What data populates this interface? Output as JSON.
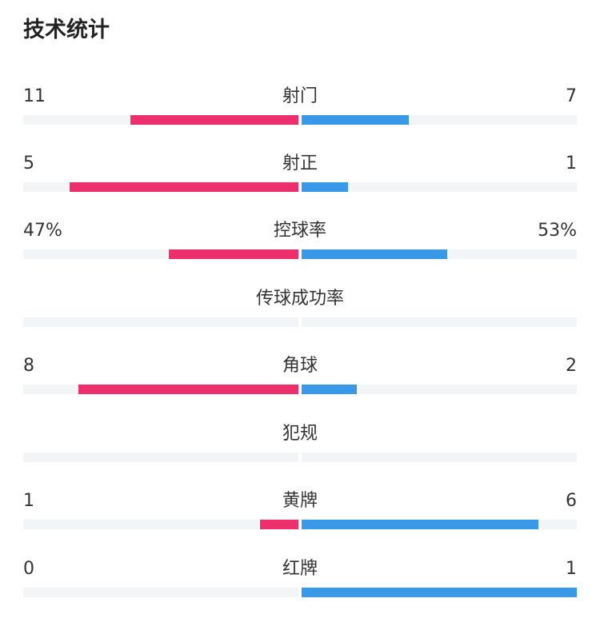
{
  "header": {
    "title": "技术统计"
  },
  "colors": {
    "home": "#ee2f6e",
    "away": "#3a98e8",
    "track": "#f3f4f6"
  },
  "stats": [
    {
      "label": "射门",
      "home": "11",
      "away": "7",
      "home_fraction": 0.61,
      "away_fraction": 0.39
    },
    {
      "label": "射正",
      "home": "5",
      "away": "1",
      "home_fraction": 0.83,
      "away_fraction": 0.17
    },
    {
      "label": "控球率",
      "home": "47%",
      "away": "53%",
      "home_fraction": 0.47,
      "away_fraction": 0.53
    },
    {
      "label": "传球成功率",
      "home": "",
      "away": "",
      "home_fraction": 0,
      "away_fraction": 0
    },
    {
      "label": "角球",
      "home": "8",
      "away": "2",
      "home_fraction": 0.8,
      "away_fraction": 0.2
    },
    {
      "label": "犯规",
      "home": "",
      "away": "",
      "home_fraction": 0,
      "away_fraction": 0
    },
    {
      "label": "黄牌",
      "home": "1",
      "away": "6",
      "home_fraction": 0.14,
      "away_fraction": 0.86
    },
    {
      "label": "红牌",
      "home": "0",
      "away": "1",
      "home_fraction": 0,
      "away_fraction": 1
    }
  ]
}
